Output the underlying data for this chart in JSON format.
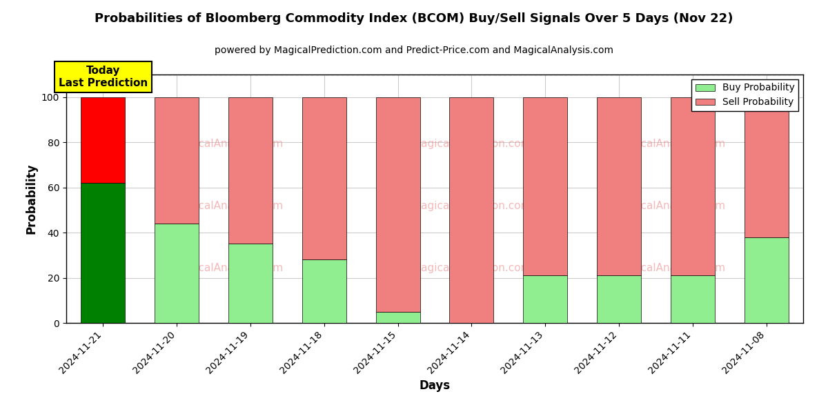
{
  "title": "Probabilities of Bloomberg Commodity Index (BCOM) Buy/Sell Signals Over 5 Days (Nov 22)",
  "subtitle": "powered by MagicalPrediction.com and Predict-Price.com and MagicalAnalysis.com",
  "xlabel": "Days",
  "ylabel": "Probability",
  "categories": [
    "2024-11-21",
    "2024-11-20",
    "2024-11-19",
    "2024-11-18",
    "2024-11-15",
    "2024-11-14",
    "2024-11-13",
    "2024-11-12",
    "2024-11-11",
    "2024-11-08"
  ],
  "buy_values": [
    62,
    44,
    35,
    28,
    5,
    0,
    21,
    21,
    21,
    38
  ],
  "sell_values": [
    38,
    56,
    65,
    72,
    95,
    100,
    79,
    79,
    79,
    62
  ],
  "today_buy_color": "#008000",
  "today_sell_color": "#FF0000",
  "buy_color": "#90EE90",
  "sell_color": "#F08080",
  "today_index": 0,
  "ylim": [
    0,
    110
  ],
  "yticks": [
    0,
    20,
    40,
    60,
    80,
    100
  ],
  "dashed_line_y": 110,
  "legend_buy_label": "Buy Probability",
  "legend_sell_label": "Sell Probability",
  "today_box_text": "Today\nLast Prediction",
  "today_box_bg": "#FFFF00",
  "background_color": "#FFFFFF",
  "grid_color": "#CCCCCC"
}
